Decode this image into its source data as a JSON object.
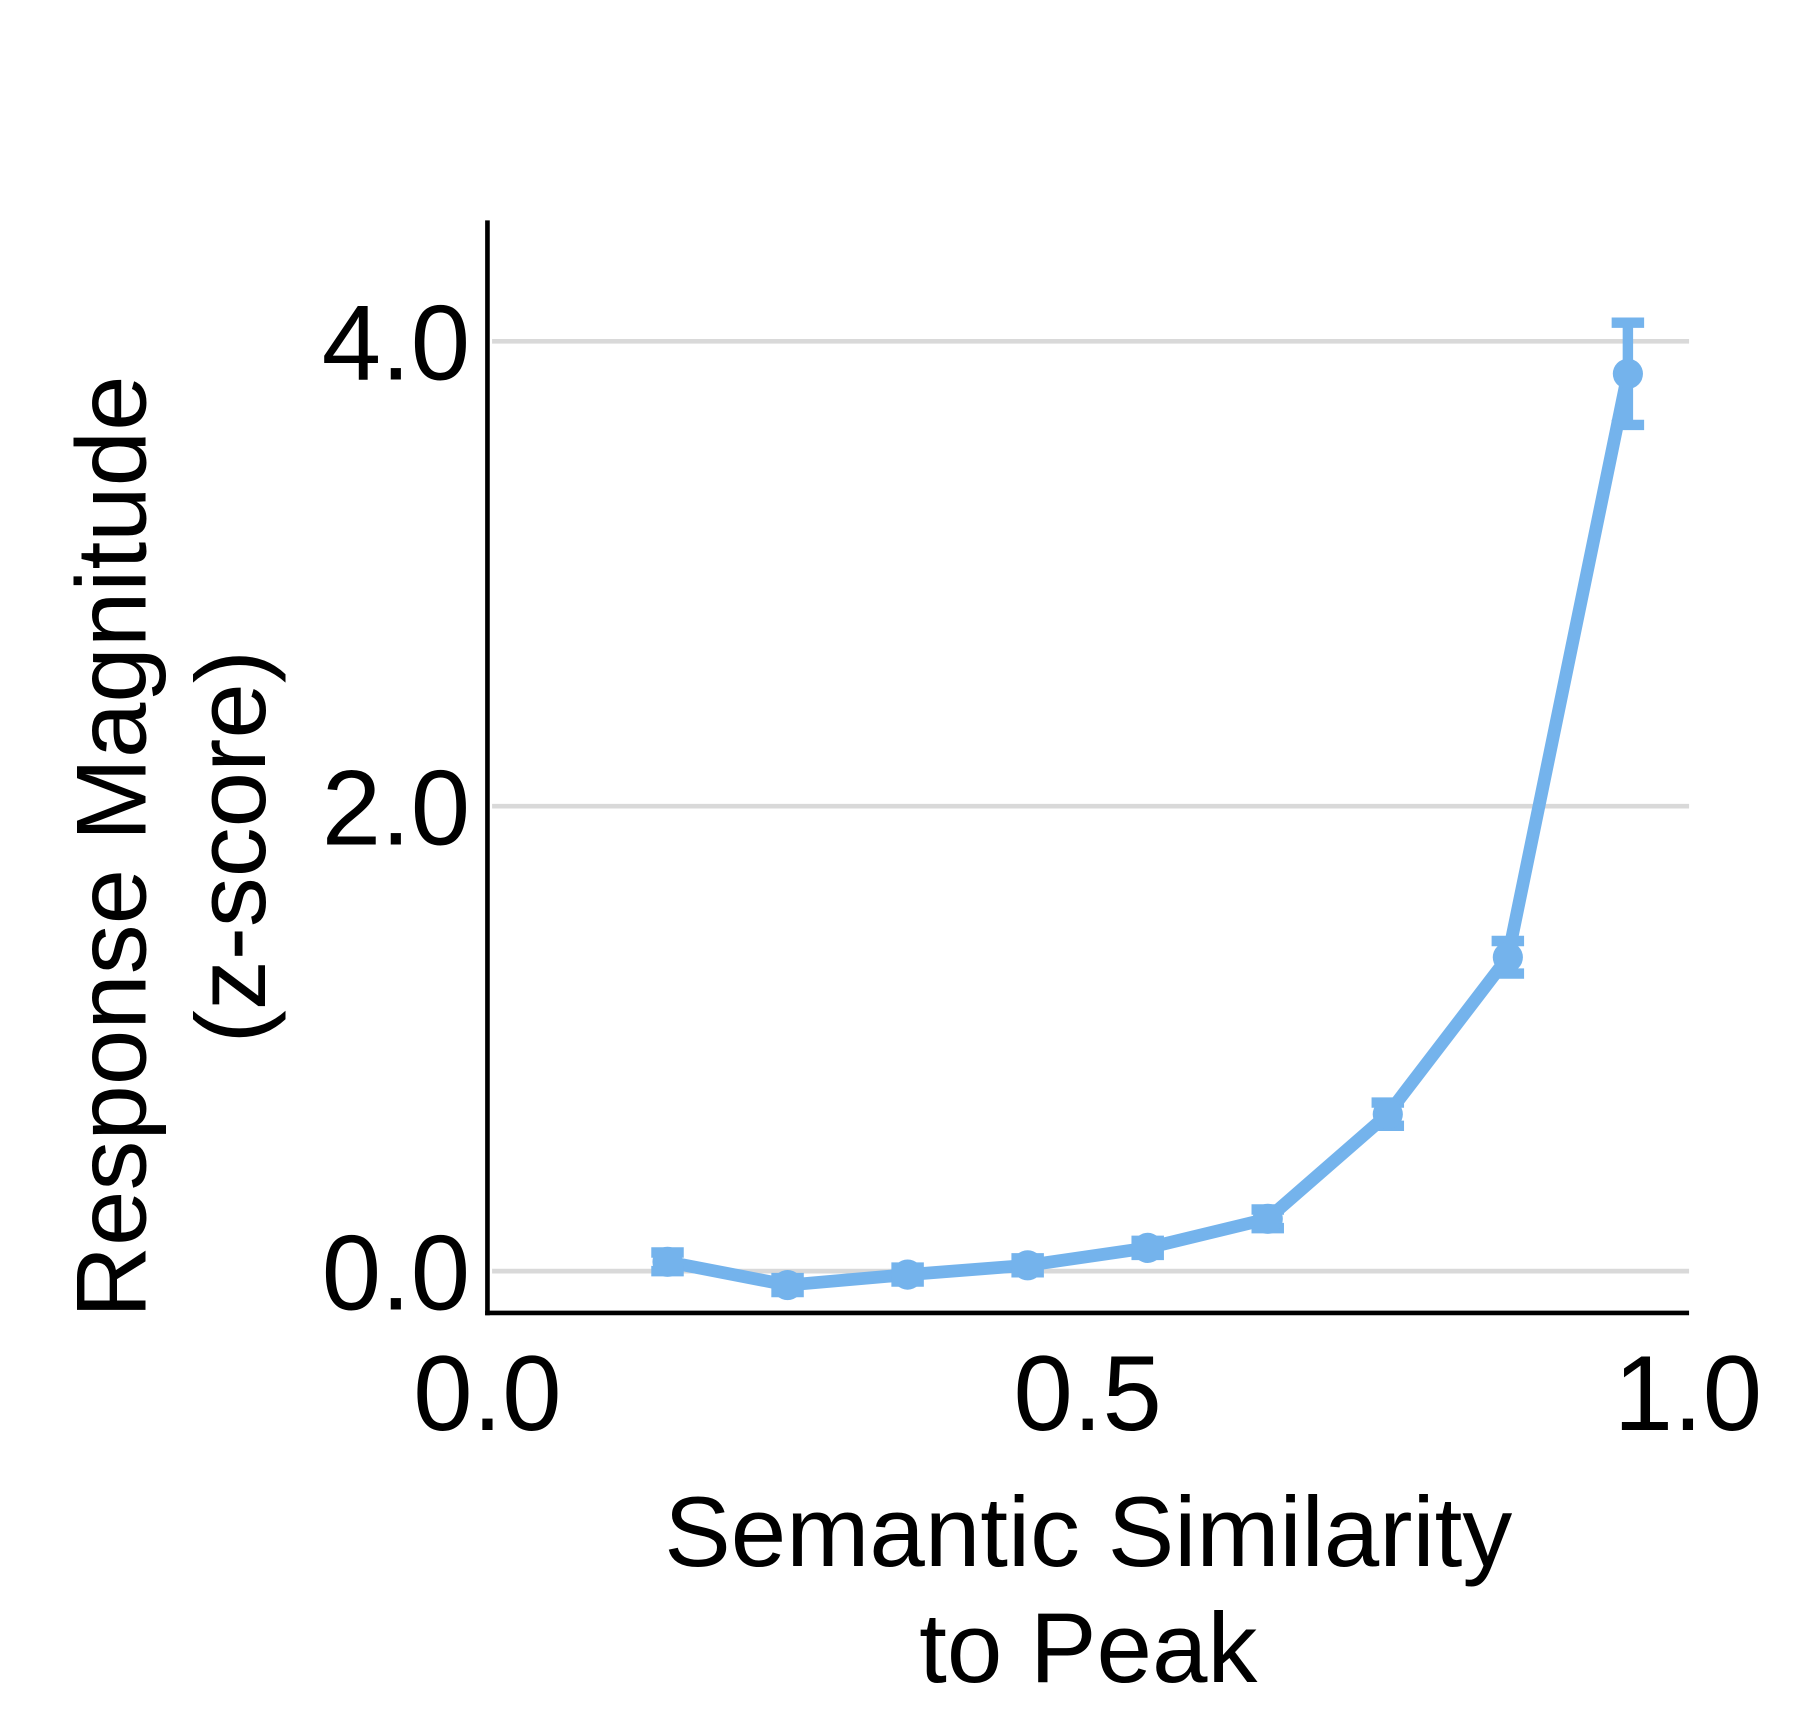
{
  "chart_data": {
    "type": "line",
    "title": "",
    "xlabel_lines": [
      "Semantic Similarity",
      "to Peak"
    ],
    "ylabel_lines": [
      "Response Magnitude",
      "(z-score)"
    ],
    "xlim": [
      0.0,
      1.0
    ],
    "ylim": [
      -0.18,
      4.52
    ],
    "xticks": [
      0.0,
      0.5,
      1.0
    ],
    "xtick_labels": [
      "0.0",
      "0.5",
      "1.0"
    ],
    "yticks": [
      0.0,
      2.0,
      4.0
    ],
    "ytick_labels": [
      "0.0",
      "2.0",
      "4.0"
    ],
    "grid": "horizontal",
    "series": [
      {
        "name": "response",
        "color": "#74b3ec",
        "x": [
          0.15,
          0.25,
          0.35,
          0.45,
          0.55,
          0.65,
          0.75,
          0.85,
          0.95
        ],
        "y": [
          0.04,
          -0.06,
          -0.015,
          0.025,
          0.1,
          0.225,
          0.675,
          1.35,
          3.86
        ],
        "yerr": [
          0.04,
          0.03,
          0.03,
          0.03,
          0.03,
          0.04,
          0.05,
          0.07,
          0.22
        ]
      }
    ]
  }
}
